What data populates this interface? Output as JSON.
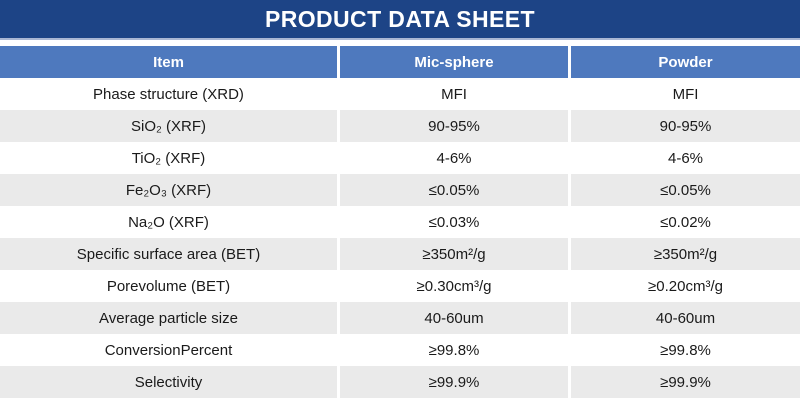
{
  "title": "PRODUCT DATA SHEET",
  "table": {
    "columns": [
      "Item",
      "Mic-sphere",
      "Powder"
    ],
    "rows": [
      {
        "item": "Phase structure (XRD)",
        "mic_sphere": "MFI",
        "powder": "MFI"
      },
      {
        "item": "SiO₂ (XRF)",
        "mic_sphere": "90-95%",
        "powder": "90-95%"
      },
      {
        "item": "TiO₂ (XRF)",
        "mic_sphere": "4-6%",
        "powder": "4-6%"
      },
      {
        "item": "Fe₂O₃ (XRF)",
        "mic_sphere": "≤0.05%",
        "powder": "≤0.05%"
      },
      {
        "item": "Na₂O (XRF)",
        "mic_sphere": "≤0.03%",
        "powder": "≤0.02%"
      },
      {
        "item": "Specific surface area (BET)",
        "mic_sphere": "≥350m²/g",
        "powder": "≥350m²/g"
      },
      {
        "item": "Porevolume (BET)",
        "mic_sphere": "≥0.30cm³/g",
        "powder": "≥0.20cm³/g"
      },
      {
        "item": "Average particle size",
        "mic_sphere": "40-60um",
        "powder": "40-60um"
      },
      {
        "item": "ConversionPercent",
        "mic_sphere": "≥99.8%",
        "powder": "≥99.8%"
      },
      {
        "item": "Selectivity",
        "mic_sphere": "≥99.9%",
        "powder": "≥99.9%"
      }
    ]
  },
  "colors": {
    "banner": "#1D4486",
    "banner_underline": "#A9B7D4",
    "header": "#4E79BE",
    "row_alt": "#EAEAEA",
    "text": "#1A1A1A"
  }
}
